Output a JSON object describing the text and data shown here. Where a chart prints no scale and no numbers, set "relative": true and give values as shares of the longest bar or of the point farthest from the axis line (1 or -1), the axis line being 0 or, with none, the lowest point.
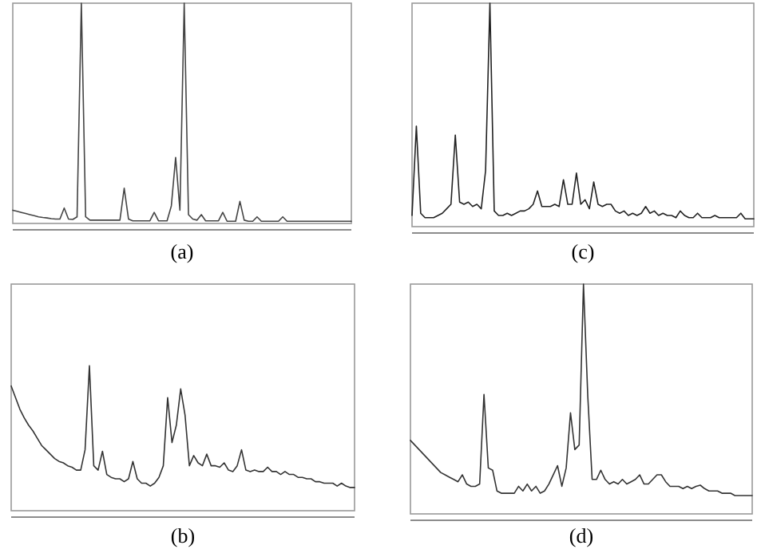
{
  "chart_data": [
    {
      "type": "line",
      "relative": true,
      "xlabel": "(a)",
      "categories": [
        null,
        null,
        null,
        null,
        null,
        null,
        null,
        null,
        null,
        null,
        null,
        null,
        null,
        null,
        null,
        null,
        null,
        null,
        null,
        null,
        null,
        null,
        null,
        null,
        null,
        null,
        null,
        null,
        null,
        null,
        null,
        null,
        null,
        null,
        null,
        null,
        null,
        null,
        null,
        null,
        null,
        null,
        null,
        null,
        null,
        null,
        null,
        null,
        null,
        null,
        null,
        null,
        null,
        null,
        null,
        null,
        null,
        null,
        null,
        null,
        null,
        null,
        null,
        null,
        null,
        null,
        null,
        null,
        null,
        null,
        null,
        null,
        null,
        null,
        null,
        null,
        null,
        null,
        null,
        null
      ],
      "series": [
        {
          "color": "#444444",
          "values": [
            0.06,
            0.055,
            0.05,
            0.045,
            0.04,
            0.035,
            0.03,
            0.027,
            0.025,
            0.022,
            0.02,
            0.02,
            0.07,
            0.02,
            0.018,
            0.03,
            1,
            0.03,
            0.015,
            0.015,
            0.015,
            0.015,
            0.015,
            0.015,
            0.015,
            0.015,
            0.16,
            0.02,
            0.012,
            0.012,
            0.012,
            0.012,
            0.012,
            0.05,
            0.012,
            0.012,
            0.012,
            0.08,
            0.3,
            0.06,
            1,
            0.04,
            0.02,
            0.015,
            0.04,
            0.012,
            0.012,
            0.012,
            0.012,
            0.05,
            0.01,
            0.01,
            0.01,
            0.1,
            0.015,
            0.01,
            0.01,
            0.03,
            0.01,
            0.01,
            0.01,
            0.01,
            0.01,
            0.03,
            0.01,
            0.01,
            0.01,
            0.01,
            0.01,
            0.01,
            0.01,
            0.01,
            0.01,
            0.01,
            0.01,
            0.01,
            0.01,
            0.01,
            0.01,
            0.01
          ]
        }
      ]
    },
    {
      "type": "line",
      "relative": true,
      "xlabel": "(c)",
      "categories": [
        null,
        null,
        null,
        null,
        null,
        null,
        null,
        null,
        null,
        null,
        null,
        null,
        null,
        null,
        null,
        null,
        null,
        null,
        null,
        null,
        null,
        null,
        null,
        null,
        null,
        null,
        null,
        null,
        null,
        null,
        null,
        null,
        null,
        null,
        null,
        null,
        null,
        null,
        null,
        null,
        null,
        null,
        null,
        null,
        null,
        null,
        null,
        null,
        null,
        null,
        null,
        null,
        null,
        null,
        null,
        null,
        null,
        null,
        null,
        null,
        null,
        null,
        null,
        null,
        null,
        null,
        null,
        null,
        null,
        null,
        null,
        null,
        null,
        null,
        null,
        null,
        null,
        null,
        null,
        null
      ],
      "series": [
        {
          "color": "#222222",
          "values": [
            0.05,
            0.45,
            0.06,
            0.04,
            0.04,
            0.04,
            0.05,
            0.06,
            0.08,
            0.1,
            0.41,
            0.11,
            0.1,
            0.11,
            0.09,
            0.1,
            0.08,
            0.25,
            1,
            0.07,
            0.05,
            0.05,
            0.06,
            0.05,
            0.06,
            0.07,
            0.07,
            0.08,
            0.1,
            0.16,
            0.09,
            0.09,
            0.09,
            0.1,
            0.09,
            0.21,
            0.1,
            0.1,
            0.24,
            0.1,
            0.12,
            0.08,
            0.2,
            0.1,
            0.09,
            0.1,
            0.1,
            0.07,
            0.06,
            0.07,
            0.05,
            0.06,
            0.05,
            0.06,
            0.09,
            0.06,
            0.07,
            0.05,
            0.06,
            0.05,
            0.05,
            0.04,
            0.07,
            0.05,
            0.04,
            0.04,
            0.06,
            0.04,
            0.04,
            0.04,
            0.05,
            0.04,
            0.04,
            0.04,
            0.04,
            0.04,
            0.06,
            0.035,
            0.035,
            0.035
          ]
        }
      ]
    },
    {
      "type": "line",
      "relative": true,
      "xlabel": "(b)",
      "categories": [
        null,
        null,
        null,
        null,
        null,
        null,
        null,
        null,
        null,
        null,
        null,
        null,
        null,
        null,
        null,
        null,
        null,
        null,
        null,
        null,
        null,
        null,
        null,
        null,
        null,
        null,
        null,
        null,
        null,
        null,
        null,
        null,
        null,
        null,
        null,
        null,
        null,
        null,
        null,
        null,
        null,
        null,
        null,
        null,
        null,
        null,
        null,
        null,
        null,
        null,
        null,
        null,
        null,
        null,
        null,
        null,
        null,
        null,
        null,
        null,
        null,
        null,
        null,
        null,
        null,
        null,
        null,
        null,
        null,
        null,
        null,
        null,
        null,
        null,
        null,
        null,
        null,
        null,
        null,
        null
      ],
      "series": [
        {
          "color": "#333333",
          "values": [
            0.86,
            0.78,
            0.7,
            0.64,
            0.59,
            0.55,
            0.5,
            0.45,
            0.42,
            0.39,
            0.36,
            0.34,
            0.33,
            0.31,
            0.3,
            0.28,
            0.28,
            0.42,
            1,
            0.31,
            0.28,
            0.41,
            0.25,
            0.23,
            0.22,
            0.22,
            0.2,
            0.22,
            0.34,
            0.22,
            0.19,
            0.19,
            0.17,
            0.19,
            0.23,
            0.31,
            0.78,
            0.47,
            0.59,
            0.84,
            0.66,
            0.31,
            0.38,
            0.33,
            0.31,
            0.39,
            0.31,
            0.31,
            0.3,
            0.33,
            0.28,
            0.27,
            0.31,
            0.42,
            0.28,
            0.27,
            0.28,
            0.27,
            0.27,
            0.3,
            0.27,
            0.27,
            0.25,
            0.27,
            0.25,
            0.25,
            0.23,
            0.23,
            0.22,
            0.22,
            0.2,
            0.2,
            0.19,
            0.19,
            0.19,
            0.17,
            0.19,
            0.17,
            0.16,
            0.16
          ]
        }
      ]
    },
    {
      "type": "line",
      "relative": true,
      "xlabel": "(d)",
      "categories": [
        null,
        null,
        null,
        null,
        null,
        null,
        null,
        null,
        null,
        null,
        null,
        null,
        null,
        null,
        null,
        null,
        null,
        null,
        null,
        null,
        null,
        null,
        null,
        null,
        null,
        null,
        null,
        null,
        null,
        null,
        null,
        null,
        null,
        null,
        null,
        null,
        null,
        null,
        null,
        null,
        null,
        null,
        null,
        null,
        null,
        null,
        null,
        null,
        null,
        null,
        null,
        null,
        null,
        null,
        null,
        null,
        null,
        null,
        null,
        null,
        null,
        null,
        null,
        null,
        null,
        null,
        null,
        null,
        null,
        null,
        null,
        null,
        null,
        null,
        null,
        null,
        null,
        null,
        null,
        null
      ],
      "series": [
        {
          "color": "#333333",
          "values": [
            0.32,
            0.3,
            0.28,
            0.26,
            0.24,
            0.22,
            0.2,
            0.18,
            0.17,
            0.16,
            0.15,
            0.14,
            0.17,
            0.13,
            0.12,
            0.12,
            0.13,
            0.52,
            0.2,
            0.19,
            0.1,
            0.09,
            0.09,
            0.09,
            0.09,
            0.12,
            0.1,
            0.13,
            0.1,
            0.12,
            0.09,
            0.1,
            0.13,
            0.17,
            0.21,
            0.12,
            0.2,
            0.44,
            0.28,
            0.3,
            1,
            0.51,
            0.15,
            0.15,
            0.19,
            0.15,
            0.13,
            0.14,
            0.13,
            0.15,
            0.13,
            0.14,
            0.15,
            0.17,
            0.13,
            0.13,
            0.15,
            0.17,
            0.17,
            0.14,
            0.12,
            0.12,
            0.12,
            0.11,
            0.12,
            0.11,
            0.12,
            0.125,
            0.11,
            0.1,
            0.1,
            0.1,
            0.09,
            0.09,
            0.09,
            0.08,
            0.08,
            0.08,
            0.08,
            0.08
          ]
        }
      ]
    }
  ]
}
